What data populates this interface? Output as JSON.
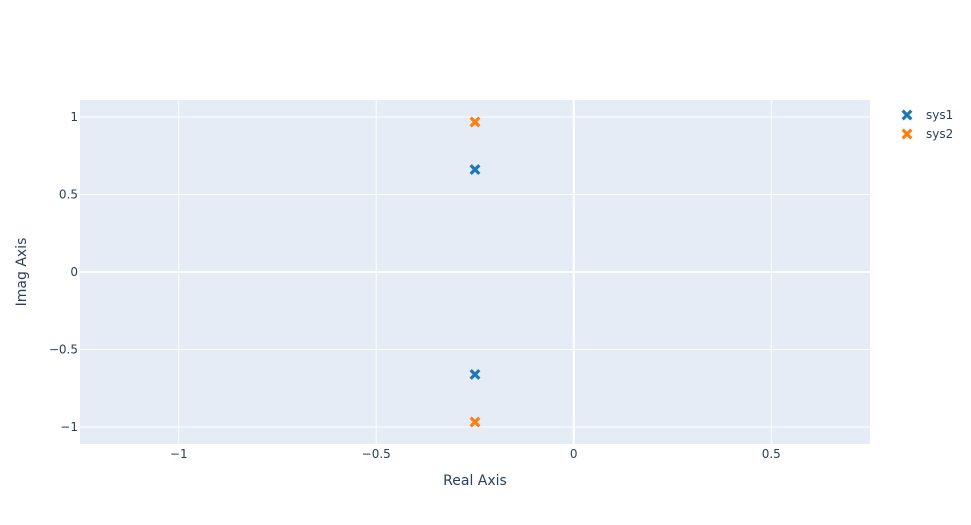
{
  "chart_data": {
    "type": "scatter",
    "marker": "x",
    "xlabel": "Real Axis",
    "ylabel": "Imag Axis",
    "xlim": [
      -1.25,
      0.75
    ],
    "ylim": [
      -1.11,
      1.11
    ],
    "xticks": [
      -1,
      -0.5,
      0,
      0.5
    ],
    "yticks": [
      -1,
      -0.5,
      0,
      0.5,
      1
    ],
    "xtick_labels": [
      "−1",
      "−0.5",
      "0",
      "0.5"
    ],
    "ytick_labels": [
      "−1",
      "−0.5",
      "0",
      "0.5",
      "1"
    ],
    "grid": true,
    "zerolines": true,
    "legend_position": "top-right",
    "series": [
      {
        "name": "sys1",
        "color": "#1f77b4",
        "x": [
          -0.25,
          -0.25
        ],
        "y": [
          0.661,
          -0.661
        ]
      },
      {
        "name": "sys2",
        "color": "#ff7f0e",
        "x": [
          -0.25,
          -0.25
        ],
        "y": [
          0.968,
          -0.968
        ]
      }
    ]
  }
}
